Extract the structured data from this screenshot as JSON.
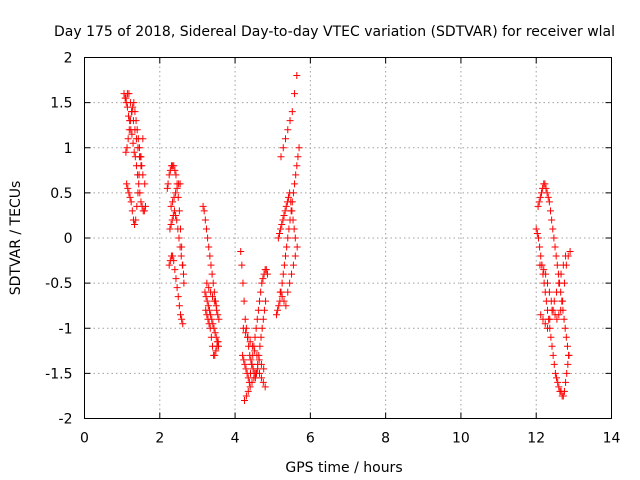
{
  "chart_data": {
    "type": "scatter",
    "title": "Day 175 of 2018, Sidereal Day-to-day VTEC variation (SDTVAR) for receiver wlal",
    "xlabel": "GPS time / hours",
    "ylabel": "SDTVAR / TECUs",
    "xlim": [
      0,
      14
    ],
    "ylim": [
      -2,
      2
    ],
    "xticks": [
      0,
      2,
      4,
      6,
      8,
      10,
      12,
      14
    ],
    "yticks": [
      -2,
      -1.5,
      -1,
      -0.5,
      0,
      0.5,
      1,
      1.5,
      2
    ],
    "xtick_labels": [
      "0",
      "2",
      "4",
      "6",
      "8",
      "10",
      "12",
      "14"
    ],
    "ytick_labels": [
      "-2",
      "-1.5",
      "-1",
      "-0.5",
      "0",
      "0.5",
      "1",
      "1.5",
      "2"
    ],
    "grid": true,
    "marker": "+",
    "marker_color": "#ff0000",
    "series": [
      {
        "name": "SDTVAR",
        "x": [
          1.05,
          1.08,
          1.11,
          1.14,
          1.17,
          1.2,
          1.23,
          1.26,
          1.29,
          1.32,
          1.35,
          1.38,
          1.41,
          1.44,
          1.47,
          1.5,
          1.53,
          1.56,
          1.59,
          1.62,
          1.1,
          1.13,
          1.16,
          1.19,
          1.22,
          1.25,
          1.28,
          1.31,
          1.34,
          1.37,
          1.4,
          1.43,
          1.46,
          1.49,
          1.52,
          1.55,
          1.6,
          1.12,
          1.15,
          1.18,
          1.21,
          1.24,
          1.27,
          1.3,
          1.33,
          1.36,
          1.39,
          1.42,
          1.45,
          1.5,
          1.55,
          1.1,
          1.14,
          1.18,
          1.22,
          1.26,
          1.3,
          1.34,
          1.38,
          1.42,
          1.46,
          1.5,
          2.2,
          2.22,
          2.25,
          2.28,
          2.31,
          2.34,
          2.37,
          2.4,
          2.43,
          2.46,
          2.49,
          2.52,
          2.55,
          2.58,
          2.61,
          2.64,
          2.25,
          2.28,
          2.31,
          2.34,
          2.37,
          2.4,
          2.43,
          2.46,
          2.49,
          2.52,
          2.55,
          2.58,
          2.61,
          2.27,
          2.3,
          2.33,
          2.36,
          2.39,
          2.42,
          2.45,
          2.48,
          2.51,
          2.54,
          2.57,
          2.6,
          2.63,
          2.3,
          2.34,
          2.38,
          2.42,
          2.46,
          2.5,
          2.54,
          3.15,
          3.18,
          3.21,
          3.24,
          3.27,
          3.3,
          3.33,
          3.36,
          3.39,
          3.42,
          3.45,
          3.48,
          3.51,
          3.54,
          3.57,
          3.2,
          3.23,
          3.26,
          3.29,
          3.32,
          3.35,
          3.38,
          3.41,
          3.44,
          3.47,
          3.5,
          3.53,
          3.56,
          3.22,
          3.25,
          3.28,
          3.31,
          3.34,
          3.37,
          3.4,
          3.43,
          3.46,
          3.49,
          3.52,
          3.55,
          3.25,
          3.3,
          3.35,
          3.4,
          3.45,
          3.5,
          4.15,
          4.18,
          4.21,
          4.24,
          4.27,
          4.3,
          4.33,
          4.36,
          4.39,
          4.42,
          4.45,
          4.48,
          4.51,
          4.54,
          4.57,
          4.6,
          4.63,
          4.66,
          4.69,
          4.72,
          4.75,
          4.78,
          4.81,
          4.2,
          4.23,
          4.26,
          4.29,
          4.32,
          4.35,
          4.38,
          4.41,
          4.44,
          4.47,
          4.5,
          4.53,
          4.56,
          4.59,
          4.62,
          4.65,
          4.68,
          4.71,
          4.74,
          4.77,
          4.8,
          4.83,
          4.86,
          4.25,
          4.3,
          4.35,
          4.4,
          4.45,
          4.5,
          4.55,
          4.6,
          4.65,
          4.7,
          4.75,
          4.8,
          4.22,
          4.28,
          4.34,
          4.4,
          4.46,
          4.52,
          4.58,
          4.64,
          4.7,
          4.76,
          5.1,
          5.13,
          5.16,
          5.19,
          5.22,
          5.25,
          5.28,
          5.31,
          5.34,
          5.37,
          5.4,
          5.43,
          5.46,
          5.49,
          5.52,
          5.55,
          5.58,
          5.61,
          5.64,
          5.67,
          5.7,
          5.15,
          5.18,
          5.21,
          5.24,
          5.27,
          5.3,
          5.33,
          5.36,
          5.39,
          5.42,
          5.45,
          5.48,
          5.51,
          5.54,
          5.57,
          5.6,
          5.2,
          5.25,
          5.3,
          5.35,
          5.4,
          5.45,
          5.5,
          5.55,
          5.6,
          5.65,
          5.22,
          5.28,
          5.34,
          5.4,
          5.46,
          5.52,
          5.58,
          5.64,
          12.0,
          12.03,
          12.06,
          12.09,
          12.12,
          12.15,
          12.18,
          12.21,
          12.24,
          12.27,
          12.3,
          12.33,
          12.36,
          12.39,
          12.42,
          12.45,
          12.48,
          12.51,
          12.54,
          12.57,
          12.6,
          12.63,
          12.66,
          12.69,
          12.72,
          12.75,
          12.78,
          12.81,
          12.84,
          12.87,
          12.05,
          12.08,
          12.11,
          12.14,
          12.17,
          12.2,
          12.23,
          12.26,
          12.29,
          12.32,
          12.35,
          12.38,
          12.41,
          12.44,
          12.47,
          12.5,
          12.53,
          12.56,
          12.59,
          12.62,
          12.65,
          12.68,
          12.71,
          12.74,
          12.77,
          12.8,
          12.83,
          12.86,
          12.1,
          12.15,
          12.2,
          12.25,
          12.3,
          12.35,
          12.4,
          12.45,
          12.5,
          12.55,
          12.6,
          12.65,
          12.7,
          12.75,
          12.8,
          12.85,
          12.9,
          12.12,
          12.18,
          12.24,
          12.3,
          12.36,
          12.42,
          12.48,
          12.54,
          12.6,
          12.66,
          12.72,
          12.78
        ],
        "y": [
          1.6,
          1.55,
          1.5,
          1.45,
          1.35,
          1.3,
          1.2,
          1.15,
          1.05,
          0.95,
          0.9,
          0.8,
          0.7,
          0.6,
          0.5,
          0.4,
          0.35,
          0.3,
          0.3,
          0.35,
          0.95,
          1.0,
          1.1,
          1.2,
          1.3,
          1.4,
          1.45,
          1.5,
          1.4,
          1.3,
          1.2,
          1.1,
          1.0,
          0.9,
          0.8,
          0.7,
          0.6,
          0.6,
          0.55,
          0.5,
          0.45,
          0.4,
          0.3,
          0.2,
          0.15,
          0.2,
          0.35,
          0.5,
          0.7,
          0.9,
          1.1,
          1.55,
          1.6,
          1.6,
          1.5,
          1.4,
          1.3,
          1.2,
          1.1,
          1.0,
          0.9,
          0.8,
          0.55,
          0.6,
          0.7,
          0.75,
          0.8,
          0.8,
          0.8,
          0.75,
          0.7,
          0.6,
          0.45,
          0.3,
          0.1,
          -0.1,
          -0.3,
          -0.5,
          -0.3,
          -0.25,
          -0.2,
          -0.2,
          -0.25,
          -0.35,
          -0.45,
          -0.55,
          -0.65,
          -0.75,
          -0.85,
          -0.9,
          -0.95,
          0.1,
          0.15,
          0.2,
          0.25,
          0.3,
          0.25,
          0.2,
          0.1,
          0.0,
          -0.1,
          -0.2,
          -0.3,
          -0.4,
          0.35,
          0.4,
          0.45,
          0.5,
          0.55,
          0.6,
          0.6,
          0.35,
          0.3,
          0.2,
          0.1,
          0.0,
          -0.1,
          -0.2,
          -0.3,
          -0.4,
          -0.5,
          -0.6,
          -0.7,
          -0.8,
          -0.85,
          -0.9,
          -0.6,
          -0.65,
          -0.7,
          -0.75,
          -0.8,
          -0.85,
          -0.9,
          -0.95,
          -1.0,
          -1.05,
          -1.1,
          -1.15,
          -1.2,
          -0.8,
          -0.85,
          -0.9,
          -0.95,
          -1.0,
          -1.1,
          -1.2,
          -1.3,
          -1.3,
          -1.25,
          -1.2,
          -1.15,
          -0.5,
          -0.55,
          -0.6,
          -0.65,
          -0.7,
          -0.75,
          -0.15,
          -0.3,
          -0.5,
          -0.7,
          -0.9,
          -1.0,
          -1.1,
          -1.2,
          -1.3,
          -1.35,
          -1.4,
          -1.45,
          -1.5,
          -1.55,
          -1.5,
          -1.4,
          -1.3,
          -1.2,
          -1.1,
          -1.0,
          -0.9,
          -0.8,
          -0.7,
          -1.3,
          -1.35,
          -1.4,
          -1.45,
          -1.5,
          -1.55,
          -1.6,
          -1.5,
          -1.4,
          -1.3,
          -1.2,
          -1.1,
          -1.0,
          -0.9,
          -0.8,
          -0.7,
          -0.6,
          -0.5,
          -0.45,
          -0.4,
          -0.35,
          -0.35,
          -0.4,
          -1.8,
          -1.75,
          -1.7,
          -1.65,
          -1.6,
          -1.55,
          -1.5,
          -1.45,
          -1.5,
          -1.55,
          -1.6,
          -1.65,
          -1.0,
          -1.05,
          -1.1,
          -1.15,
          -1.2,
          -1.25,
          -1.3,
          -1.35,
          -1.4,
          -1.45,
          -0.85,
          -0.8,
          -0.75,
          -0.7,
          -0.6,
          -0.5,
          -0.4,
          -0.3,
          -0.2,
          -0.1,
          0.0,
          0.1,
          0.2,
          0.3,
          0.4,
          0.5,
          0.6,
          0.7,
          0.8,
          0.9,
          1.0,
          0.0,
          0.05,
          0.1,
          0.15,
          0.2,
          0.25,
          0.3,
          0.35,
          0.4,
          0.45,
          0.5,
          0.4,
          0.3,
          0.2,
          0.1,
          0.0,
          -0.6,
          -0.65,
          -0.7,
          -0.75,
          -0.6,
          -0.5,
          -0.4,
          -0.3,
          -0.2,
          -0.1,
          0.9,
          1.0,
          1.1,
          1.2,
          1.3,
          1.4,
          1.6,
          1.8,
          0.1,
          0.05,
          0.0,
          -0.1,
          -0.2,
          -0.3,
          -0.4,
          -0.5,
          -0.6,
          -0.7,
          -0.8,
          -0.9,
          -1.0,
          -1.1,
          -1.2,
          -1.3,
          -1.4,
          -1.5,
          -1.55,
          -1.6,
          -1.65,
          -1.7,
          -1.7,
          -1.75,
          -1.75,
          -1.7,
          -1.6,
          -1.5,
          -1.4,
          -1.3,
          0.35,
          0.4,
          0.45,
          0.5,
          0.55,
          0.6,
          0.6,
          0.55,
          0.5,
          0.45,
          0.4,
          0.3,
          0.2,
          0.1,
          0.0,
          -0.1,
          -0.2,
          -0.3,
          -0.4,
          -0.5,
          -0.6,
          -0.7,
          -0.8,
          -0.9,
          -1.0,
          -1.1,
          -1.2,
          -1.3,
          -0.3,
          -0.3,
          -0.35,
          -0.4,
          -0.5,
          -0.6,
          -0.7,
          -0.8,
          -0.85,
          -0.9,
          -0.85,
          -0.8,
          -0.7,
          -0.5,
          -0.3,
          -0.2,
          -0.15,
          -0.85,
          -0.9,
          -0.95,
          -1.0,
          -0.9,
          -0.8,
          -0.7,
          -0.6,
          -0.5,
          -0.4,
          -0.3,
          -0.2
        ]
      }
    ]
  }
}
